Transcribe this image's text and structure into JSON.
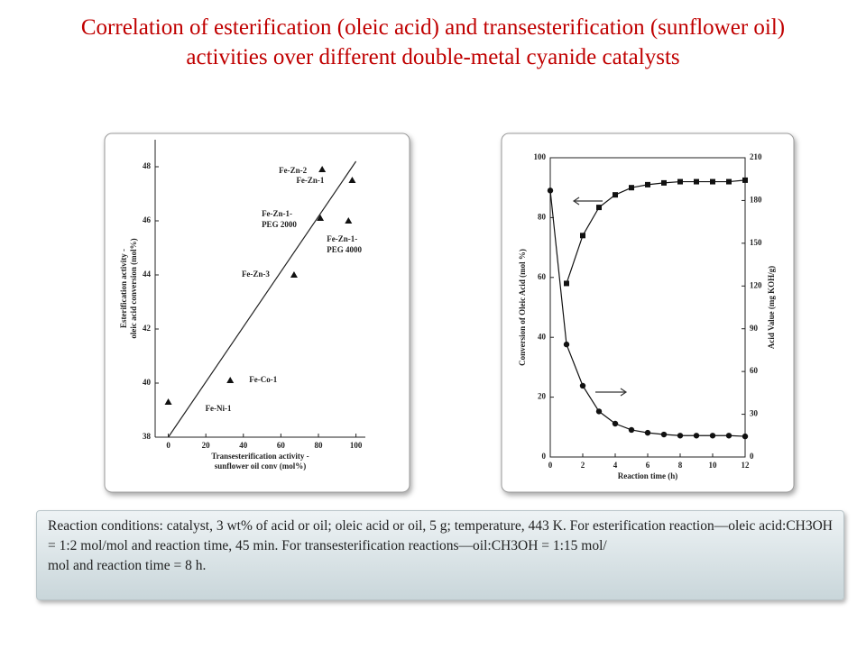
{
  "title": "Correlation of esterification (oleic acid) and transesterification (sunflower oil) activities over different double-metal cyanide catalysts",
  "caption": "Reaction conditions: catalyst, 3 wt% of acid or oil; oleic acid or oil, 5 g; temperature, 443 K. For esterification reaction—oleic acid:CH3OH = 1:2 mol/mol and reaction time, 45 min. For transesterification reactions—oil:CH3OH = 1:15 mol/\nmol and reaction time = 8 h.",
  "chart_data": [
    {
      "type": "scatter",
      "x_label": [
        "Transesterification activity -",
        "sunflower oil conv (mol%)"
      ],
      "y_label": [
        "Esterification activity -",
        "oleic acid conversion (mol%)"
      ],
      "xlim": [
        -7,
        105
      ],
      "xticks": [
        0,
        20,
        40,
        60,
        80,
        100
      ],
      "ylim": [
        38,
        49
      ],
      "yticks": [
        38,
        40,
        42,
        44,
        46,
        48
      ],
      "series": [
        {
          "marker": "triangle",
          "color": "#111111",
          "x": [
            0,
            33,
            67,
            81,
            82,
            98,
            96
          ],
          "values": [
            39.3,
            40.1,
            44.0,
            46.1,
            47.9,
            47.5,
            46.0
          ]
        }
      ],
      "point_labels": [
        [
          "Fe-Ni-1"
        ],
        [
          "Fe-Co-1"
        ],
        [
          "Fe-Zn-3"
        ],
        [
          "Fe-Zn-1-",
          "PEG 2000"
        ],
        [
          "Fe-Zn-2"
        ],
        [
          "Fe-Zn-1"
        ],
        [
          "Fe-Zn-1-",
          "PEG 4000"
        ]
      ],
      "fit_line": {
        "x": [
          0,
          100
        ],
        "values": [
          38.0,
          48.2
        ]
      }
    },
    {
      "type": "line",
      "x_label": [
        "Reaction time (h)"
      ],
      "y_label": [
        "Conversion of Oleic Acid (mol %)"
      ],
      "y2_label": [
        "Acid Value (mg KOH/g)"
      ],
      "xlim": [
        0,
        12
      ],
      "xticks": [
        0,
        2,
        4,
        6,
        8,
        10,
        12
      ],
      "ylim": [
        0,
        100
      ],
      "yticks": [
        0,
        20,
        40,
        60,
        80,
        100
      ],
      "y2lim": [
        0,
        210
      ],
      "y2ticks": [
        0,
        30,
        60,
        90,
        120,
        150,
        180,
        210
      ],
      "series": [
        {
          "marker": "square",
          "color": "#111111",
          "x": [
            1,
            2,
            3,
            4,
            5,
            6,
            7,
            8,
            9,
            10,
            11,
            12
          ],
          "values": [
            58,
            74,
            83.4,
            87.6,
            90,
            91,
            91.6,
            92,
            92,
            92,
            92,
            92.5
          ]
        },
        {
          "marker": "circle",
          "axis": "y2",
          "color": "#111111",
          "x": [
            0,
            1,
            2,
            3,
            4,
            5,
            6,
            7,
            8,
            9,
            10,
            11,
            12
          ],
          "values": [
            187,
            79,
            50,
            32,
            23.4,
            19,
            17,
            15.8,
            15,
            15,
            15,
            15,
            14.5
          ]
        }
      ]
    }
  ]
}
